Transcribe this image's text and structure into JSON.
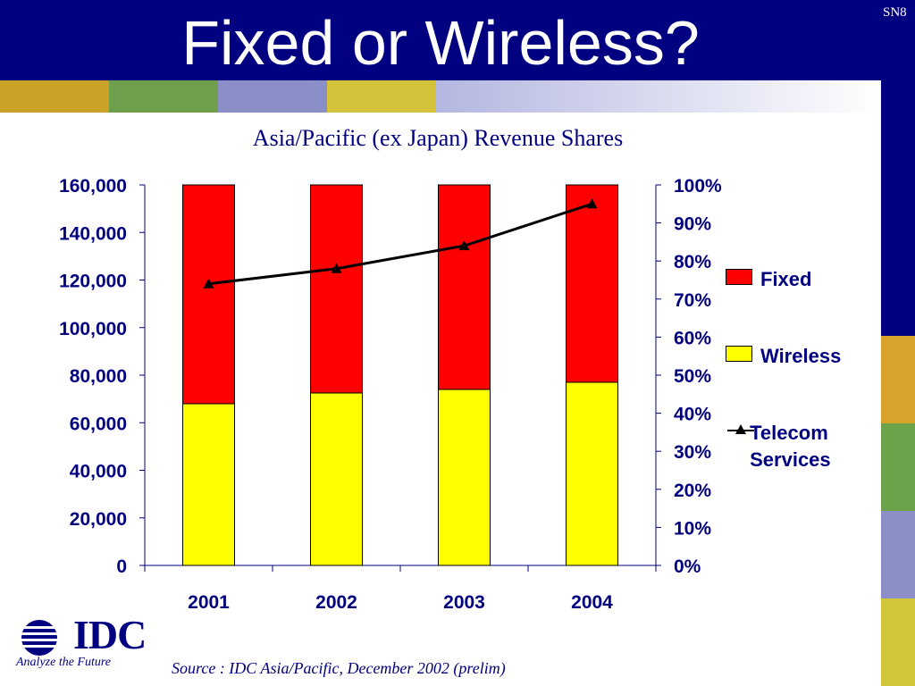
{
  "slide": {
    "title": "Fixed or Wireless?",
    "slide_number": "SN8",
    "source": "Source : IDC Asia/Pacific, December 2002 (prelim)"
  },
  "logo": {
    "text": "IDC",
    "tagline": "Analyze the Future"
  },
  "colors": {
    "header_bg": "#000080",
    "text_navy": "#000080",
    "fixed": "#ff0000",
    "wireless": "#ffff00",
    "telecom": "#000000"
  },
  "decor": {
    "strip_tiles": [
      "#c9a227",
      "#6f9e4c",
      "#8a8fc7",
      "#d3c23a",
      "#b4b7e0"
    ],
    "side_blocks": [
      "#000080",
      "#d9a22a",
      "#6aa34a",
      "#8b8fc6",
      "#d4c63a"
    ]
  },
  "chart_data": {
    "type": "bar",
    "title": "Asia/Pacific (ex Japan) Revenue Shares",
    "categories": [
      "2001",
      "2002",
      "2003",
      "2004"
    ],
    "series": [
      {
        "name": "Fixed",
        "type": "stacked-bar",
        "axis": "left",
        "values": [
          92000,
          87500,
          86000,
          83000
        ]
      },
      {
        "name": "Wireless",
        "type": "stacked-bar",
        "axis": "left",
        "values": [
          68000,
          72500,
          74000,
          77000
        ]
      },
      {
        "name": "Telecom Services",
        "type": "line",
        "axis": "right",
        "values": [
          74,
          78,
          84,
          95
        ]
      }
    ],
    "left_axis": {
      "range": [
        0,
        160000
      ],
      "ticks": [
        0,
        20000,
        40000,
        60000,
        80000,
        100000,
        120000,
        140000,
        160000
      ],
      "tick_labels": [
        "0",
        "20,000",
        "40,000",
        "60,000",
        "80,000",
        "100,000",
        "120,000",
        "140,000",
        "160,000"
      ]
    },
    "right_axis": {
      "range": [
        0,
        100
      ],
      "ticks": [
        0,
        10,
        20,
        30,
        40,
        50,
        60,
        70,
        80,
        90,
        100
      ],
      "tick_labels": [
        "0%",
        "10%",
        "20%",
        "30%",
        "40%",
        "50%",
        "60%",
        "70%",
        "80%",
        "90%",
        "100%"
      ]
    },
    "legend_position": "right",
    "grid": false
  }
}
